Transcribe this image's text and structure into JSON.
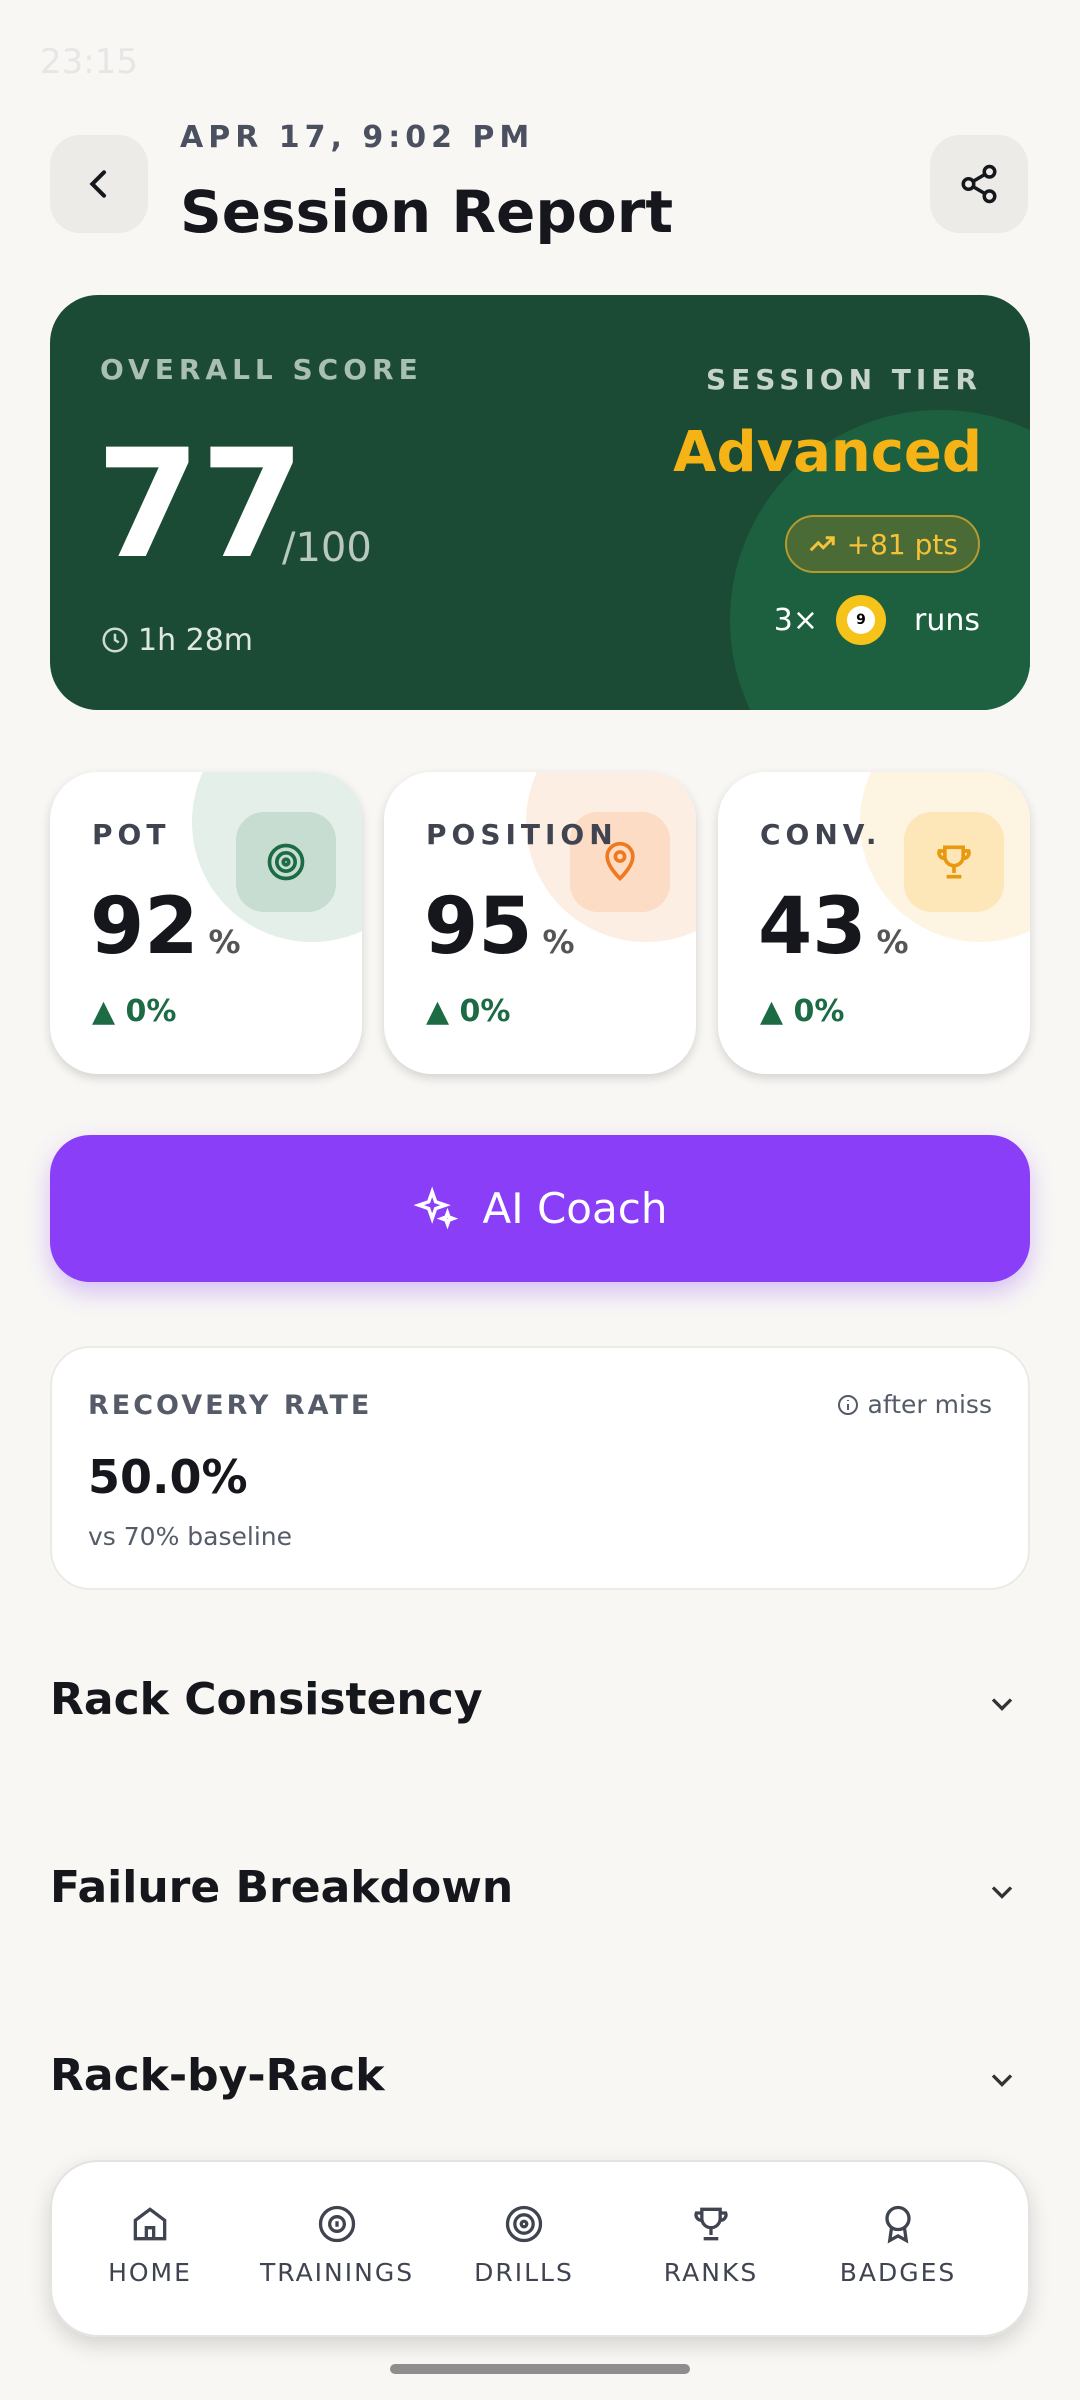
{
  "status_bar": {
    "time": "23:15"
  },
  "header": {
    "date": "APR 17, 9:02 PM",
    "title": "Session Report"
  },
  "score_card": {
    "label": "OVERALL SCORE",
    "score": "77",
    "max": "/100",
    "duration": "1h 28m",
    "tier_label": "SESSION TIER",
    "tier": "Advanced",
    "points": "+81 pts",
    "runs_count": "3×",
    "ball": "9",
    "runs_label": "runs"
  },
  "stats": [
    {
      "label": "POT",
      "value": "92",
      "unit": "%",
      "change": "0%"
    },
    {
      "label": "POSITION",
      "value": "95",
      "unit": "%",
      "change": "0%"
    },
    {
      "label": "CONV.",
      "value": "43",
      "unit": "%",
      "change": "0%"
    }
  ],
  "ai_coach": {
    "label": "AI Coach"
  },
  "recovery": {
    "label": "RECOVERY RATE",
    "note": "after miss",
    "value": "50.0%",
    "baseline": "vs 70% baseline"
  },
  "sections": [
    "Rack Consistency",
    "Failure Breakdown",
    "Rack-by-Rack"
  ],
  "nav": [
    "HOME",
    "TRAININGS",
    "DRILLS",
    "RANKS",
    "BADGES"
  ]
}
